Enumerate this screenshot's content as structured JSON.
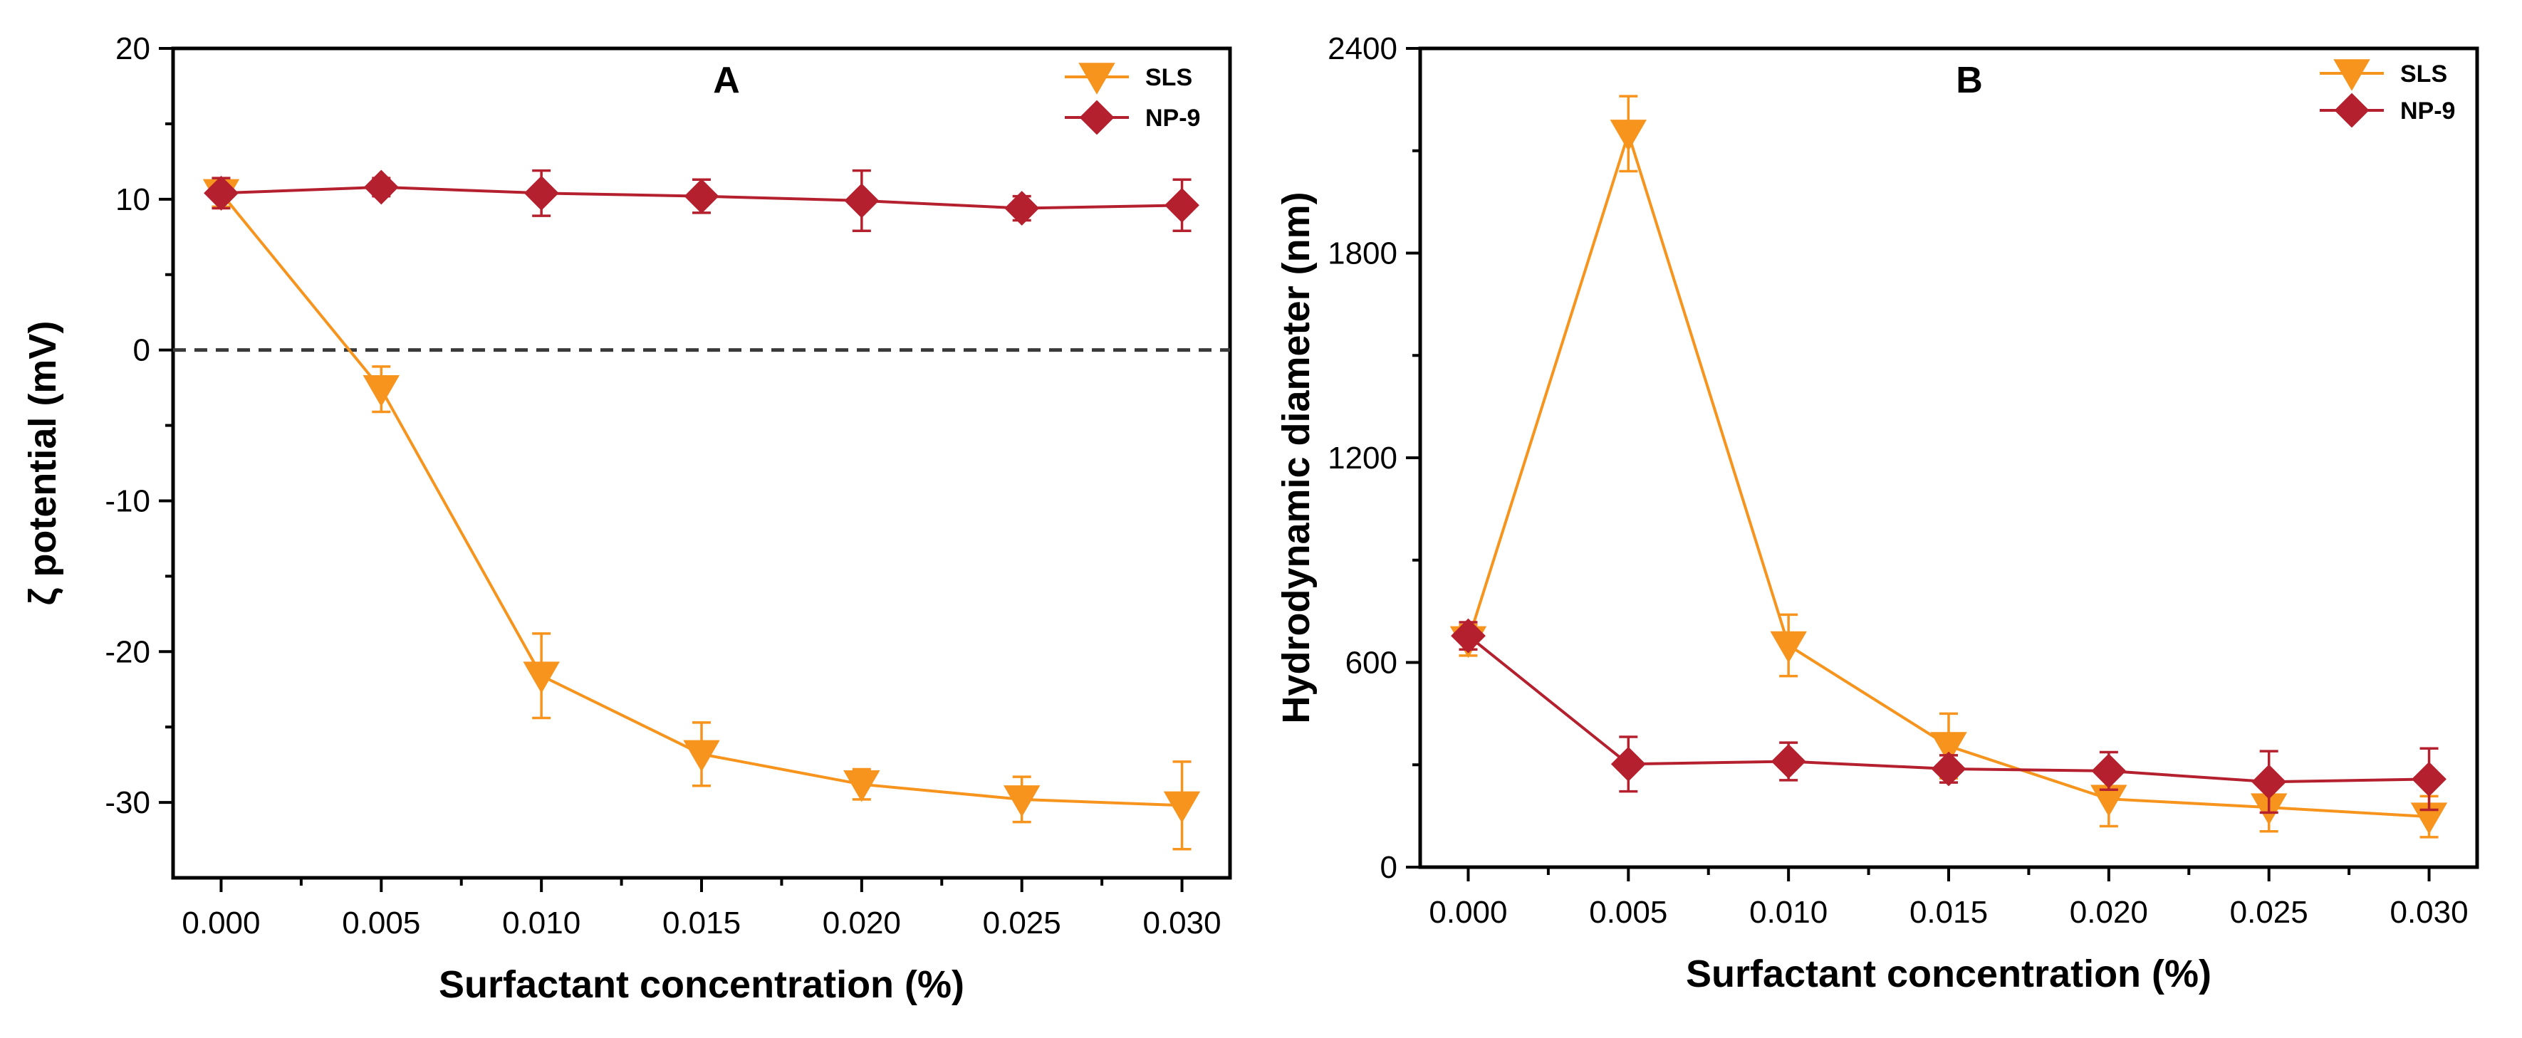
{
  "chart_data": [
    {
      "panel": "A",
      "type": "line",
      "title": "A",
      "xlabel": "Surfactant concentration (%)",
      "ylabel": "ζ potential (mV)",
      "xlim": [
        -0.0015,
        0.0315
      ],
      "ylim": [
        -35,
        20
      ],
      "xticks": [
        0.0,
        0.005,
        0.01,
        0.015,
        0.02,
        0.025,
        0.03
      ],
      "xtick_labels": [
        "0.000",
        "0.005",
        "0.010",
        "0.015",
        "0.020",
        "0.025",
        "0.030"
      ],
      "yticks": [
        20,
        10,
        0,
        -10,
        -20,
        -30
      ],
      "ytick_labels": [
        "20",
        "10",
        "0",
        "-10",
        "-20",
        "-30"
      ],
      "reference_line": 0,
      "legend_position": "top-right",
      "grid": false,
      "x": [
        0.0,
        0.005,
        0.01,
        0.015,
        0.02,
        0.025,
        0.03
      ],
      "series": [
        {
          "name": "SLS",
          "marker": "triangle-down",
          "color": "#F7941D",
          "values": [
            10.4,
            -2.6,
            -21.6,
            -26.8,
            -28.8,
            -29.8,
            -30.2
          ],
          "errors": [
            0.9,
            1.5,
            2.8,
            2.1,
            1.0,
            1.5,
            2.9
          ]
        },
        {
          "name": "NP-9",
          "marker": "diamond",
          "color": "#B5202E",
          "values": [
            10.4,
            10.8,
            10.4,
            10.2,
            9.9,
            9.4,
            9.6
          ],
          "errors": [
            1.0,
            0.6,
            1.5,
            1.1,
            2.0,
            0.8,
            1.7
          ]
        }
      ]
    },
    {
      "panel": "B",
      "type": "line",
      "title": "B",
      "xlabel": "Surfactant concentration (%)",
      "ylabel": "Hydrodynamic diameter (nm)",
      "xlim": [
        -0.0015,
        0.0315
      ],
      "ylim": [
        0,
        2400
      ],
      "xticks": [
        0.0,
        0.005,
        0.01,
        0.015,
        0.02,
        0.025,
        0.03
      ],
      "xtick_labels": [
        "0.000",
        "0.005",
        "0.010",
        "0.015",
        "0.020",
        "0.025",
        "0.030"
      ],
      "yticks": [
        2400,
        1800,
        1200,
        600,
        0
      ],
      "ytick_labels": [
        "2400",
        "1800",
        "1200",
        "600",
        "0"
      ],
      "legend_position": "top-right",
      "grid": false,
      "x": [
        0.0,
        0.005,
        0.01,
        0.015,
        0.02,
        0.025,
        0.03
      ],
      "series": [
        {
          "name": "SLS",
          "marker": "triangle-down",
          "color": "#F7941D",
          "values": [
            665,
            2150,
            650,
            355,
            200,
            175,
            148
          ],
          "errors": [
            45,
            110,
            90,
            95,
            80,
            70,
            60
          ]
        },
        {
          "name": "NP-9",
          "marker": "diamond",
          "color": "#B5202E",
          "values": [
            678,
            302,
            310,
            288,
            282,
            250,
            258
          ],
          "errors": [
            40,
            80,
            55,
            40,
            55,
            90,
            90
          ]
        }
      ]
    }
  ]
}
